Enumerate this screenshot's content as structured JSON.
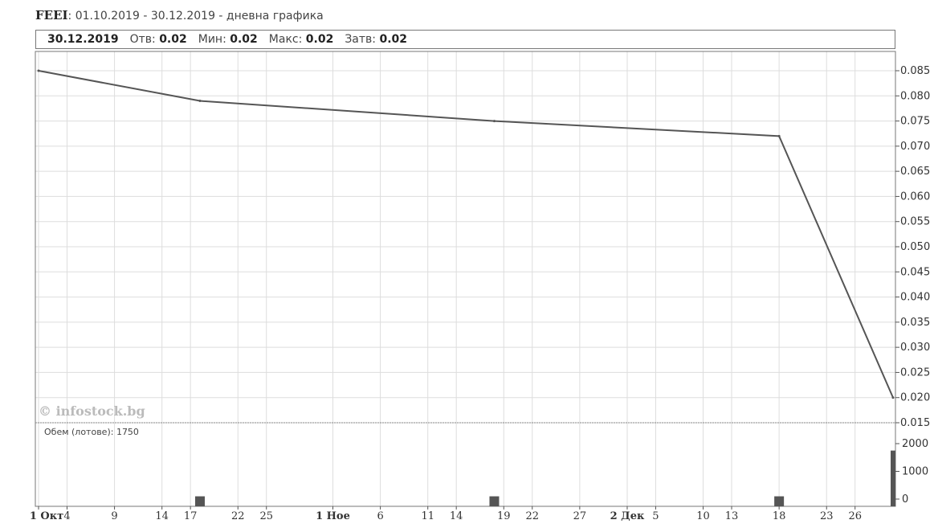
{
  "header": {
    "ticker": "FEEI",
    "subtitle": ": 01.10.2019 - 30.12.2019 - дневна графика"
  },
  "info": {
    "date": "30.12.2019",
    "open_label": "Отв:",
    "open_value": "0.02",
    "min_label": "Мин:",
    "min_value": "0.02",
    "max_label": "Макс:",
    "max_value": "0.02",
    "close_label": "Затв:",
    "close_value": "0.02"
  },
  "watermark": "© infostock.bg",
  "volume_label": "Обем (лотове): 1750",
  "colors": {
    "price_line": "#555555",
    "volume_bar": "#555555",
    "grid": "#dddddd",
    "frame": "#777777"
  },
  "chart_data": [
    {
      "type": "line",
      "title": "",
      "ylim": [
        0.015,
        0.085
      ],
      "y_ticks": [
        "0.085",
        "0.080",
        "0.075",
        "0.070",
        "0.065",
        "0.060",
        "0.055",
        "0.050",
        "0.045",
        "0.040",
        "0.035",
        "0.030",
        "0.025",
        "0.020",
        "0.015"
      ],
      "grid": true,
      "series": [
        {
          "x": [
            "2019-10-01",
            "2019-10-18",
            "2019-11-18",
            "2019-12-18",
            "2019-12-30"
          ],
          "values": [
            0.085,
            0.079,
            0.075,
            0.072,
            0.02
          ]
        }
      ]
    },
    {
      "type": "bar",
      "ylim": [
        0,
        2000
      ],
      "y_ticks": [
        "2000",
        "1000",
        "0"
      ],
      "series": [
        {
          "x": [
            "2019-10-18",
            "2019-11-18",
            "2019-12-18",
            "2019-12-30"
          ],
          "values": [
            100,
            100,
            100,
            1750
          ]
        }
      ]
    }
  ],
  "x_axis": {
    "start": "2019-10-01",
    "end": "2019-12-30",
    "ticks": [
      {
        "date": "2019-10-01",
        "label": "1 Окт",
        "bold": true
      },
      {
        "date": "2019-10-04",
        "label": "4"
      },
      {
        "date": "2019-10-09",
        "label": "9"
      },
      {
        "date": "2019-10-14",
        "label": "14"
      },
      {
        "date": "2019-10-17",
        "label": "17"
      },
      {
        "date": "2019-10-22",
        "label": "22"
      },
      {
        "date": "2019-10-25",
        "label": "25"
      },
      {
        "date": "2019-11-01",
        "label": "1 Ное",
        "bold": true
      },
      {
        "date": "2019-11-06",
        "label": "6"
      },
      {
        "date": "2019-11-11",
        "label": "11"
      },
      {
        "date": "2019-11-14",
        "label": "14"
      },
      {
        "date": "2019-11-19",
        "label": "19"
      },
      {
        "date": "2019-11-22",
        "label": "22"
      },
      {
        "date": "2019-11-27",
        "label": "27"
      },
      {
        "date": "2019-12-02",
        "label": "2 Дек",
        "bold": true
      },
      {
        "date": "2019-12-05",
        "label": "5"
      },
      {
        "date": "2019-12-10",
        "label": "10"
      },
      {
        "date": "2019-12-13",
        "label": "13"
      },
      {
        "date": "2019-12-18",
        "label": "18"
      },
      {
        "date": "2019-12-23",
        "label": "23"
      },
      {
        "date": "2019-12-26",
        "label": "26"
      }
    ]
  }
}
